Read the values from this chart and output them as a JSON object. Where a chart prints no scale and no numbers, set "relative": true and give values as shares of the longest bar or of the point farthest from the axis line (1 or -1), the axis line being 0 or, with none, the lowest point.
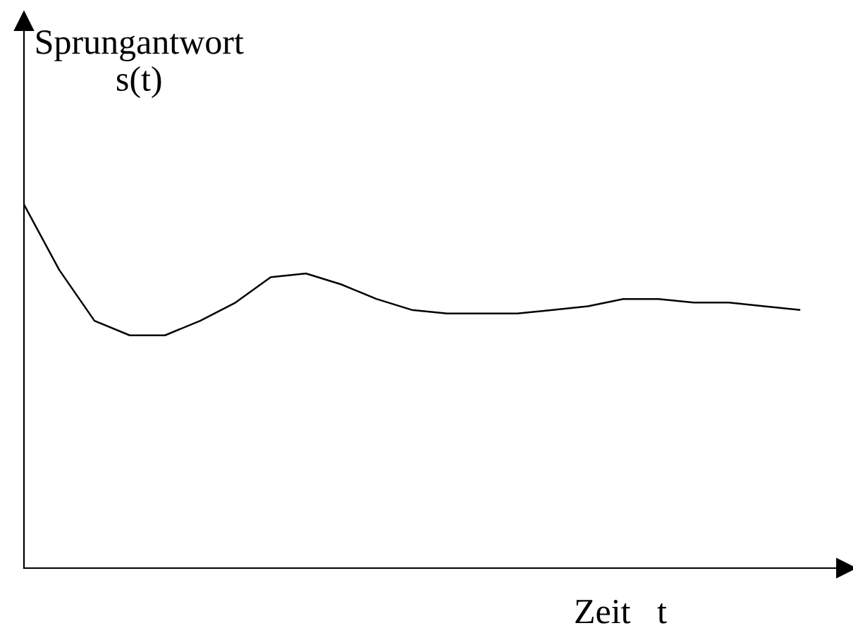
{
  "chart_data": {
    "type": "line",
    "relative": true,
    "ylabel": "Sprungantwort\ns(t)",
    "xlabel": "Zeit   t",
    "color": "#000000",
    "categories": [
      null,
      null,
      null,
      null,
      null,
      null,
      null,
      null,
      null,
      null,
      null,
      null,
      null,
      null,
      null,
      null,
      null,
      null,
      null,
      null,
      null,
      null,
      null
    ],
    "values": [
      1,
      0.82,
      0.68,
      0.64,
      0.64,
      0.68,
      0.73,
      0.8,
      0.81,
      0.78,
      0.74,
      0.71,
      0.7,
      0.7,
      0.7,
      0.71,
      0.72,
      0.74,
      0.74,
      0.73,
      0.73,
      0.72,
      0.71
    ],
    "legend": false,
    "marker": "none",
    "line_style": "solid"
  }
}
